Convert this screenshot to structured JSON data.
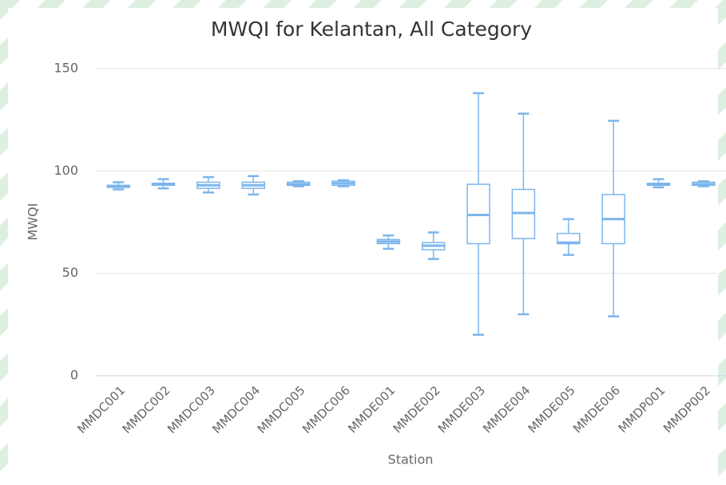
{
  "chart_data": {
    "type": "boxplot",
    "title": "MWQI for Kelantan, All Category",
    "x_label": "Station",
    "y_label": "MWQI",
    "categories": [
      "MMDC001",
      "MMDC002",
      "MMDC003",
      "MMDC004",
      "MMDC005",
      "MMDC006",
      "MMDE001",
      "MMDE002",
      "MMDE003",
      "MMDE004",
      "MMDE005",
      "MMDE006",
      "MMDP001",
      "MMDP002"
    ],
    "low": [
      91,
      91.5,
      89.5,
      88.5,
      92.5,
      92.5,
      62,
      57,
      20,
      30,
      59,
      29,
      92,
      92.5
    ],
    "q1": [
      92,
      93,
      91.5,
      91.5,
      93,
      93,
      64.5,
      61.5,
      64.5,
      67,
      64.5,
      64.5,
      93,
      93
    ],
    "median": [
      92.5,
      93.5,
      93,
      93,
      93.5,
      94,
      65.5,
      63.5,
      78.5,
      79.5,
      65,
      76.5,
      93.5,
      93.5
    ],
    "q3": [
      93,
      94,
      94.5,
      94.5,
      94.5,
      95,
      66.5,
      65,
      93.5,
      91,
      69.5,
      88.5,
      94,
      94.5
    ],
    "high": [
      94.5,
      96,
      97,
      97.5,
      95,
      95.5,
      68.5,
      70,
      138,
      128,
      76.5,
      124.5,
      96,
      95
    ],
    "color": "#7cb5ec",
    "ylim": [
      0,
      150
    ],
    "yticks": [
      0,
      50,
      100,
      150
    ],
    "grid": true
  }
}
